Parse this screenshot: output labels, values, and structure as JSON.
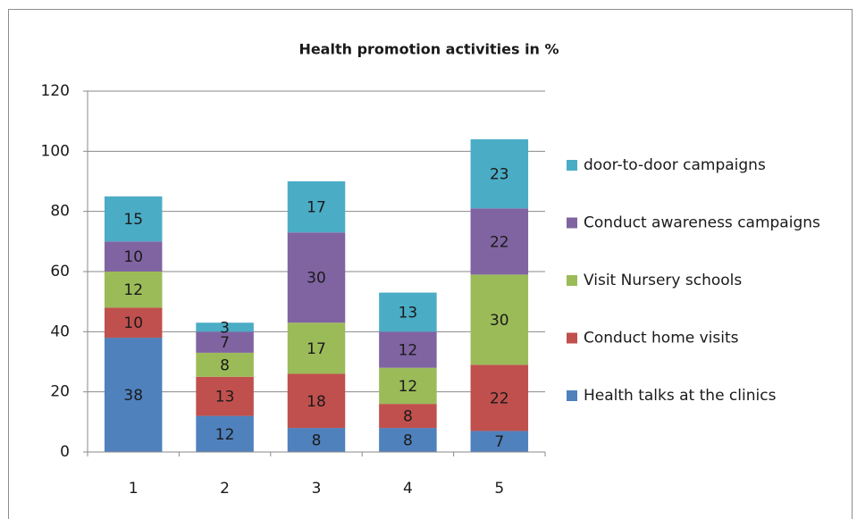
{
  "chart_data": {
    "type": "stacked_bar",
    "title": "Health promotion activities in %",
    "categories": [
      "1",
      "2",
      "3",
      "4",
      "5"
    ],
    "series": [
      {
        "name": "Health talks at the clinics",
        "color": "#4f81bd",
        "values": [
          38,
          12,
          8,
          8,
          7
        ]
      },
      {
        "name": "Conduct home visits",
        "color": "#c0504d",
        "values": [
          10,
          13,
          18,
          8,
          22
        ]
      },
      {
        "name": "Visit Nursery schools",
        "color": "#9bbb59",
        "values": [
          12,
          8,
          17,
          12,
          30
        ]
      },
      {
        "name": "Conduct awareness campaigns",
        "color": "#8064a2",
        "values": [
          10,
          7,
          30,
          12,
          22
        ]
      },
      {
        "name": "door-to-door campaigns",
        "color": "#4bacc6",
        "values": [
          15,
          3,
          17,
          13,
          23
        ]
      }
    ],
    "ylim": [
      0,
      120
    ],
    "yticks": [
      0,
      20,
      40,
      60,
      80,
      100,
      120
    ],
    "grid": true,
    "legend": "right"
  }
}
